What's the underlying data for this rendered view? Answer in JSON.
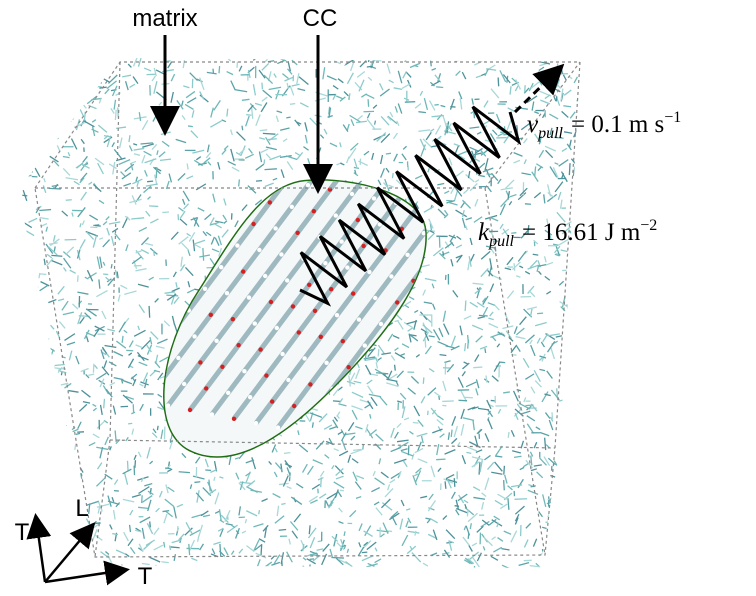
{
  "labels": {
    "matrix": "matrix",
    "cc": "CC"
  },
  "equations": [
    {
      "symbol": "v",
      "subscript": "pull",
      "rhs": "= 0.1 m s",
      "superscript": "−1"
    },
    {
      "symbol": "k",
      "subscript": "pull",
      "rhs": "= 16.61 J m",
      "superscript": "−2"
    }
  ],
  "axes": {
    "vertical": "T",
    "depth": "L",
    "horizontal": "T"
  }
}
